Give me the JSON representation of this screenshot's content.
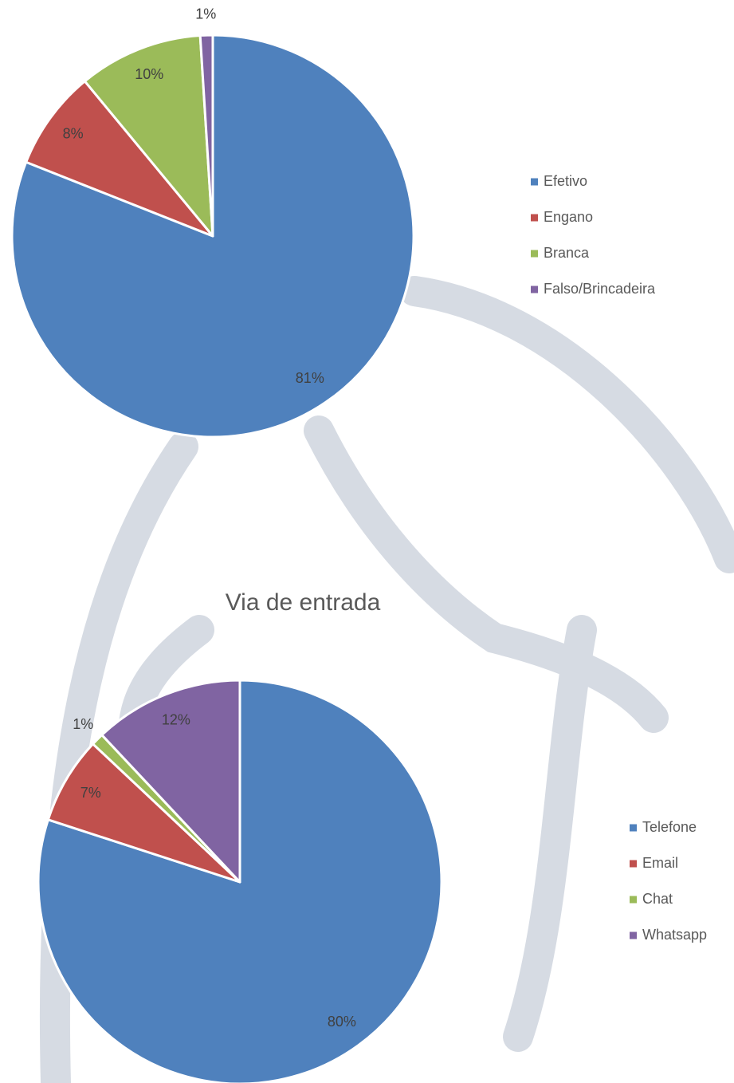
{
  "chart_data": [
    {
      "type": "pie",
      "categories": [
        "Efetivo",
        "Engano",
        "Branca",
        "Falso/Brincadeira"
      ],
      "values": [
        81,
        8,
        10,
        1
      ],
      "value_labels": [
        "81%",
        "8%",
        "10%",
        "1%"
      ],
      "colors": [
        "#4f81bd",
        "#c0504d",
        "#9bbb59",
        "#8064a2"
      ],
      "legend": "right"
    },
    {
      "type": "pie",
      "title": "Via de entrada",
      "categories": [
        "Telefone",
        "Email",
        "Chat",
        "Whatsapp"
      ],
      "values": [
        80,
        7,
        1,
        12
      ],
      "value_labels": [
        "80%",
        "7%",
        "1%",
        "12%"
      ],
      "colors": [
        "#4f81bd",
        "#c0504d",
        "#9bbb59",
        "#8064a2"
      ],
      "legend": "right"
    }
  ]
}
